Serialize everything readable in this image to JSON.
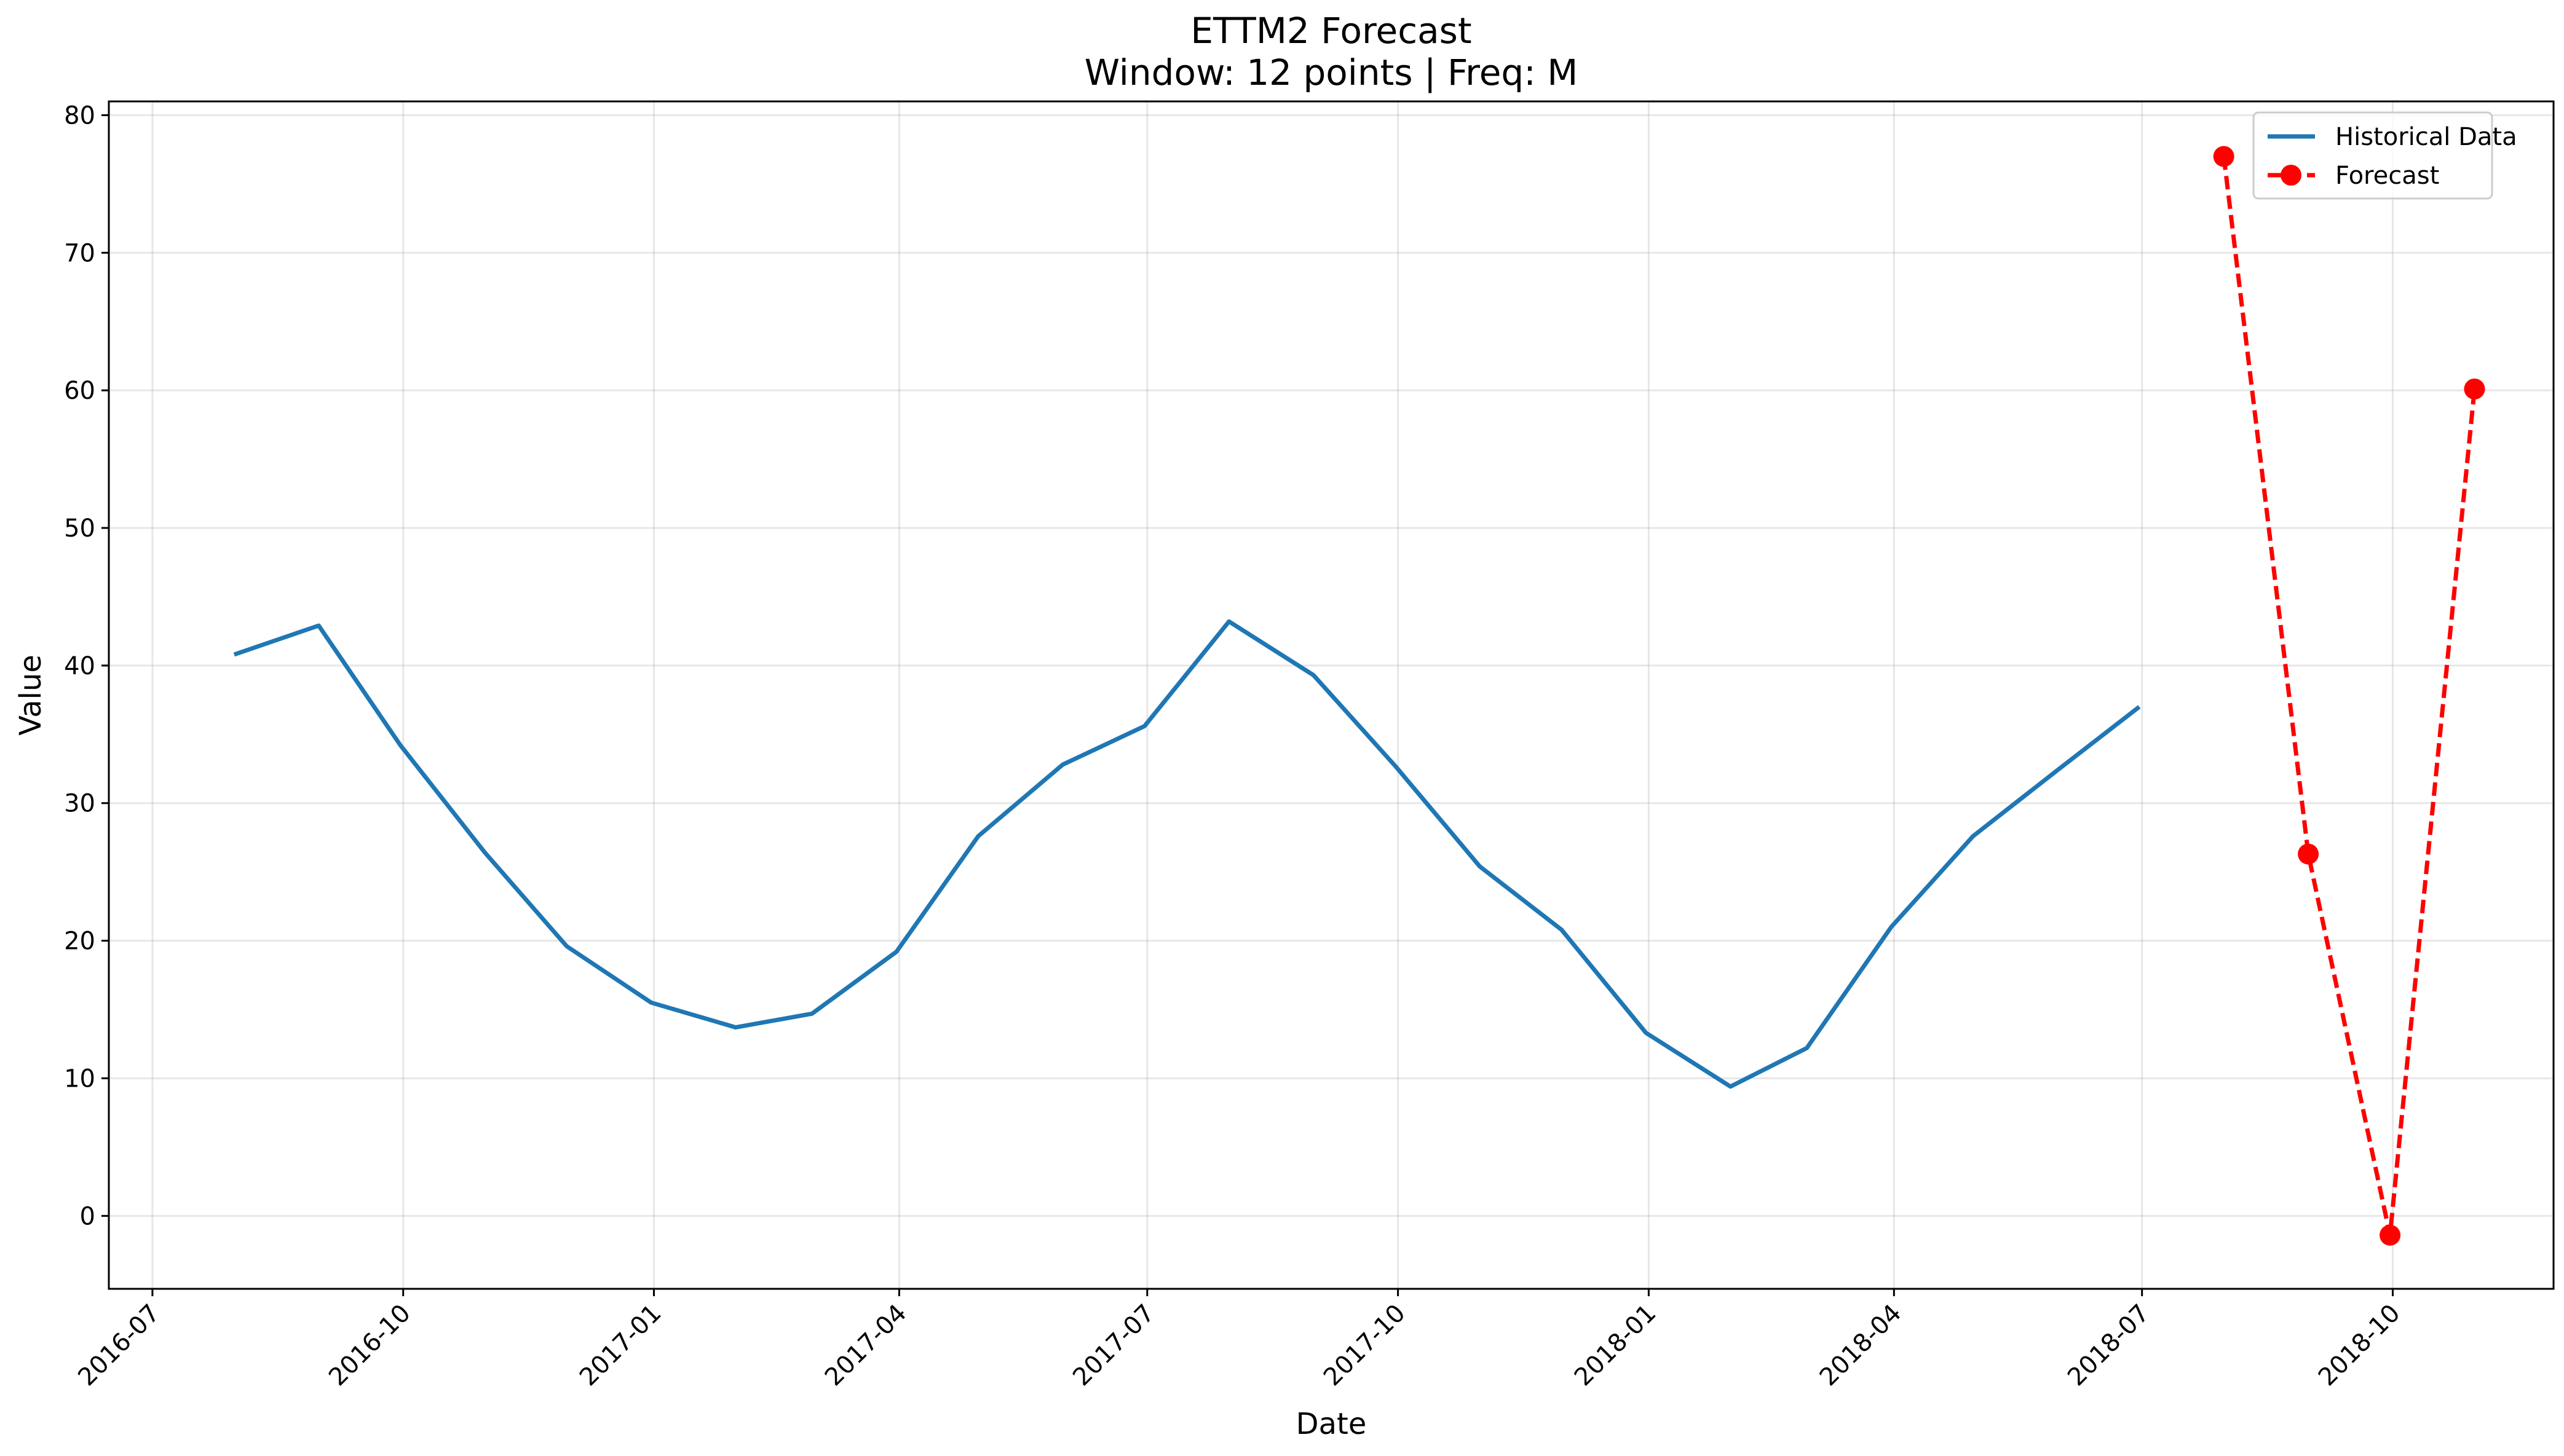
{
  "chart_data": {
    "type": "line",
    "title": "ETTM2 Forecast",
    "subtitle": "Window: 12 points | Freq: M",
    "xlabel": "Date",
    "ylabel": "Value",
    "xlim": [
      "2016-06-15",
      "2018-11-29"
    ],
    "ylim": [
      -5.3,
      81
    ],
    "grid": true,
    "legend_position": "top-right",
    "x_ticks": [
      "2016-07",
      "2016-10",
      "2017-01",
      "2017-04",
      "2017-07",
      "2017-10",
      "2018-01",
      "2018-04",
      "2018-07",
      "2018-10"
    ],
    "y_ticks": [
      0,
      10,
      20,
      30,
      40,
      50,
      60,
      70,
      80
    ],
    "series": [
      {
        "name": "Historical Data",
        "color": "#1f77b4",
        "style": "solid",
        "marker": "none",
        "x": [
          "2016-07-31",
          "2016-08-31",
          "2016-09-30",
          "2016-10-31",
          "2016-11-30",
          "2016-12-31",
          "2017-01-31",
          "2017-02-28",
          "2017-03-31",
          "2017-04-30",
          "2017-05-31",
          "2017-06-30",
          "2017-07-31",
          "2017-08-31",
          "2017-09-30",
          "2017-10-31",
          "2017-11-30",
          "2017-12-31",
          "2018-01-31",
          "2018-02-28",
          "2018-03-31",
          "2018-04-30",
          "2018-05-31",
          "2018-06-30"
        ],
        "values": [
          40.8,
          42.9,
          34.2,
          26.4,
          19.6,
          15.5,
          13.7,
          14.7,
          19.2,
          27.6,
          32.8,
          35.6,
          43.2,
          39.3,
          32.7,
          25.4,
          20.8,
          13.3,
          9.4,
          12.2,
          21.0,
          27.6,
          32.4,
          37.0
        ]
      },
      {
        "name": "Forecast",
        "color": "#ff0000",
        "style": "dashed",
        "marker": "circle",
        "x": [
          "2018-07-31",
          "2018-08-31",
          "2018-09-30",
          "2018-10-31"
        ],
        "values": [
          77.0,
          26.3,
          -1.4,
          60.1
        ]
      }
    ]
  }
}
